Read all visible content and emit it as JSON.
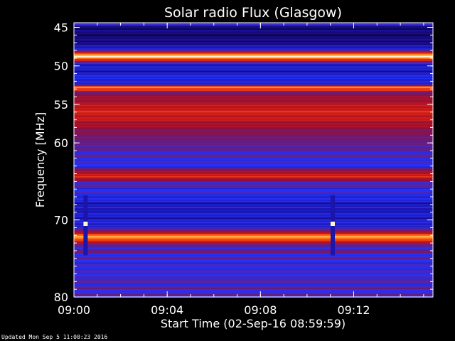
{
  "chart_data": {
    "type": "heatmap",
    "title": "Solar radio Flux (Glasgow)",
    "xlabel": "Start Time (02-Sep-16 08:59:59)",
    "ylabel": "Frequency [MHz]",
    "x_unit": "minutes after 09:00",
    "xlim": [
      0,
      15.4
    ],
    "ylim": [
      80,
      44.4
    ],
    "y_direction": "frequency increases downward",
    "xticks": [
      {
        "value": 0,
        "label": "09:00"
      },
      {
        "value": 4,
        "label": "09:04"
      },
      {
        "value": 8,
        "label": "09:08"
      },
      {
        "value": 12,
        "label": "09:12"
      }
    ],
    "yticks": [
      {
        "value": 45,
        "label": "45"
      },
      {
        "value": 50,
        "label": "50"
      },
      {
        "value": 55,
        "label": "55"
      },
      {
        "value": 60,
        "label": "60"
      },
      {
        "value": 70,
        "label": "70"
      },
      {
        "value": 80,
        "label": "80"
      }
    ],
    "colormap": [
      "#000000",
      "#1a0a8c",
      "#2233ff",
      "#8a1040",
      "#c0141c",
      "#ff4a10",
      "#ffb020",
      "#fff6d0"
    ],
    "background_intensity": 0.3,
    "intensity_by_frequency": [
      {
        "mhz": 44.4,
        "intensity": 0.3
      },
      {
        "mhz": 45.0,
        "intensity": 0.12
      },
      {
        "mhz": 46.5,
        "intensity": 0.12
      },
      {
        "mhz": 47.7,
        "intensity": 0.2
      },
      {
        "mhz": 48.7,
        "intensity": 0.96
      },
      {
        "mhz": 49.7,
        "intensity": 0.22
      },
      {
        "mhz": 50.7,
        "intensity": 0.2
      },
      {
        "mhz": 51.5,
        "intensity": 0.26
      },
      {
        "mhz": 52.3,
        "intensity": 0.22
      },
      {
        "mhz": 52.8,
        "intensity": 0.8
      },
      {
        "mhz": 53.4,
        "intensity": 0.42
      },
      {
        "mhz": 54.5,
        "intensity": 0.5
      },
      {
        "mhz": 55.8,
        "intensity": 0.62
      },
      {
        "mhz": 56.9,
        "intensity": 0.56
      },
      {
        "mhz": 58.5,
        "intensity": 0.42
      },
      {
        "mhz": 60.5,
        "intensity": 0.36
      },
      {
        "mhz": 62.0,
        "intensity": 0.3
      },
      {
        "mhz": 63.0,
        "intensity": 0.28
      },
      {
        "mhz": 64.2,
        "intensity": 0.64
      },
      {
        "mhz": 65.2,
        "intensity": 0.32
      },
      {
        "mhz": 66.5,
        "intensity": 0.28
      },
      {
        "mhz": 68.0,
        "intensity": 0.2
      },
      {
        "mhz": 69.8,
        "intensity": 0.22
      },
      {
        "mhz": 71.0,
        "intensity": 0.26
      },
      {
        "mhz": 72.2,
        "intensity": 0.88
      },
      {
        "mhz": 73.2,
        "intensity": 0.36
      },
      {
        "mhz": 74.3,
        "intensity": 0.34
      },
      {
        "mhz": 75.5,
        "intensity": 0.3
      },
      {
        "mhz": 77.0,
        "intensity": 0.32
      },
      {
        "mhz": 80.0,
        "intensity": 0.34
      }
    ],
    "bright_lines": [
      {
        "mhz": 48.8,
        "intensity": 1.0
      },
      {
        "mhz": 52.8,
        "intensity": 0.82
      },
      {
        "mhz": 64.4,
        "intensity": 0.66
      },
      {
        "mhz": 72.2,
        "intensity": 0.9
      }
    ],
    "vertical_bursts": [
      {
        "time": 0.5,
        "mhz_from": 66.8,
        "mhz_to": 74.6,
        "peak_mhz": 70.5
      },
      {
        "time": 11.1,
        "mhz_from": 66.8,
        "mhz_to": 74.6,
        "peak_mhz": 70.5
      }
    ]
  },
  "footer": {
    "text": "Updated Mon Sep  5 11:00:23 2016"
  }
}
